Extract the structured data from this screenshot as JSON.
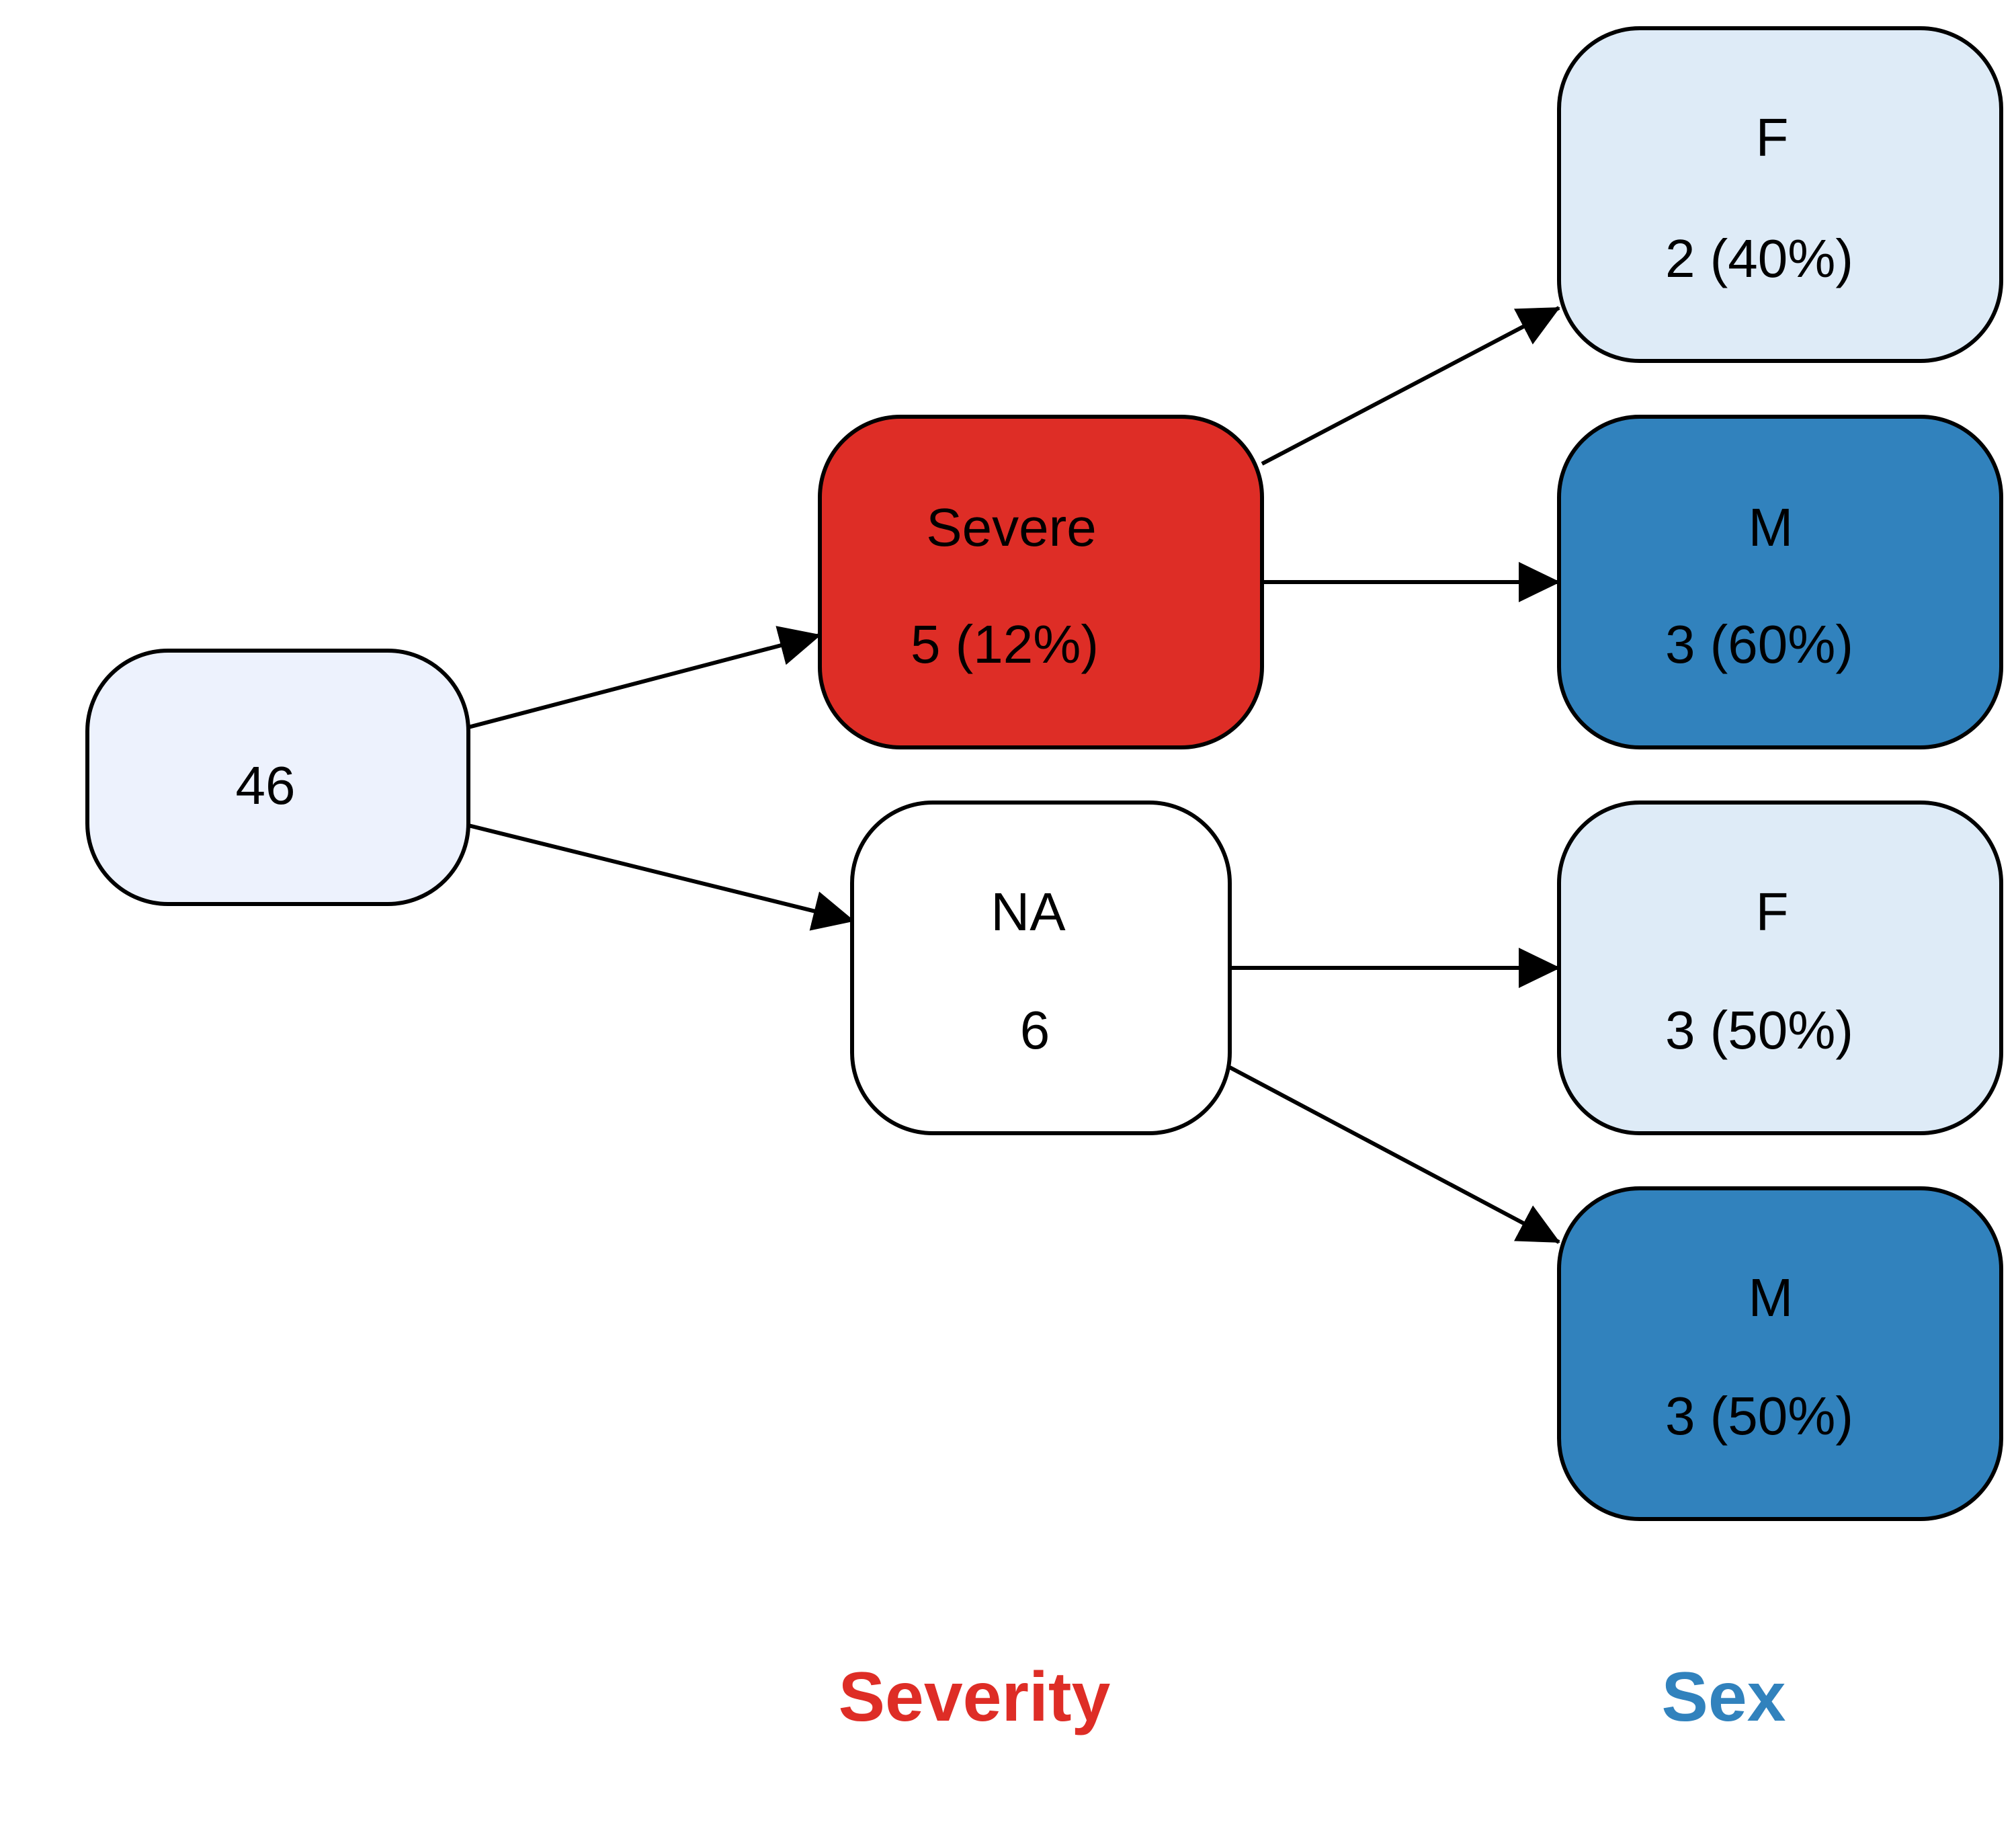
{
  "colors": {
    "root": "#EDF2FD",
    "severe": "#DE2D26",
    "na": "#FFFFFF",
    "sex_f": "#DEEBF7",
    "sex_m": "#3182BD",
    "severity_label": "#DE2D26",
    "sex_label": "#3182BD",
    "stroke": "#000000"
  },
  "nodes": {
    "root": {
      "count": "46"
    },
    "severe": {
      "label": "Severe",
      "count": "5 (12%)"
    },
    "na": {
      "label": "NA",
      "count": "6"
    },
    "severe_f": {
      "label": "F",
      "count": "2 (40%)"
    },
    "severe_m": {
      "label": "M",
      "count": "3 (60%)"
    },
    "na_f": {
      "label": "F",
      "count": "3 (50%)"
    },
    "na_m": {
      "label": "M",
      "count": "3 (50%)"
    }
  },
  "edges": [
    {
      "from": "root",
      "to": "severe"
    },
    {
      "from": "root",
      "to": "na"
    },
    {
      "from": "severe",
      "to": "severe_f"
    },
    {
      "from": "severe",
      "to": "severe_m"
    },
    {
      "from": "na",
      "to": "na_f"
    },
    {
      "from": "na",
      "to": "na_m"
    }
  ],
  "level_labels": {
    "severity": "Severity",
    "sex": "Sex"
  }
}
